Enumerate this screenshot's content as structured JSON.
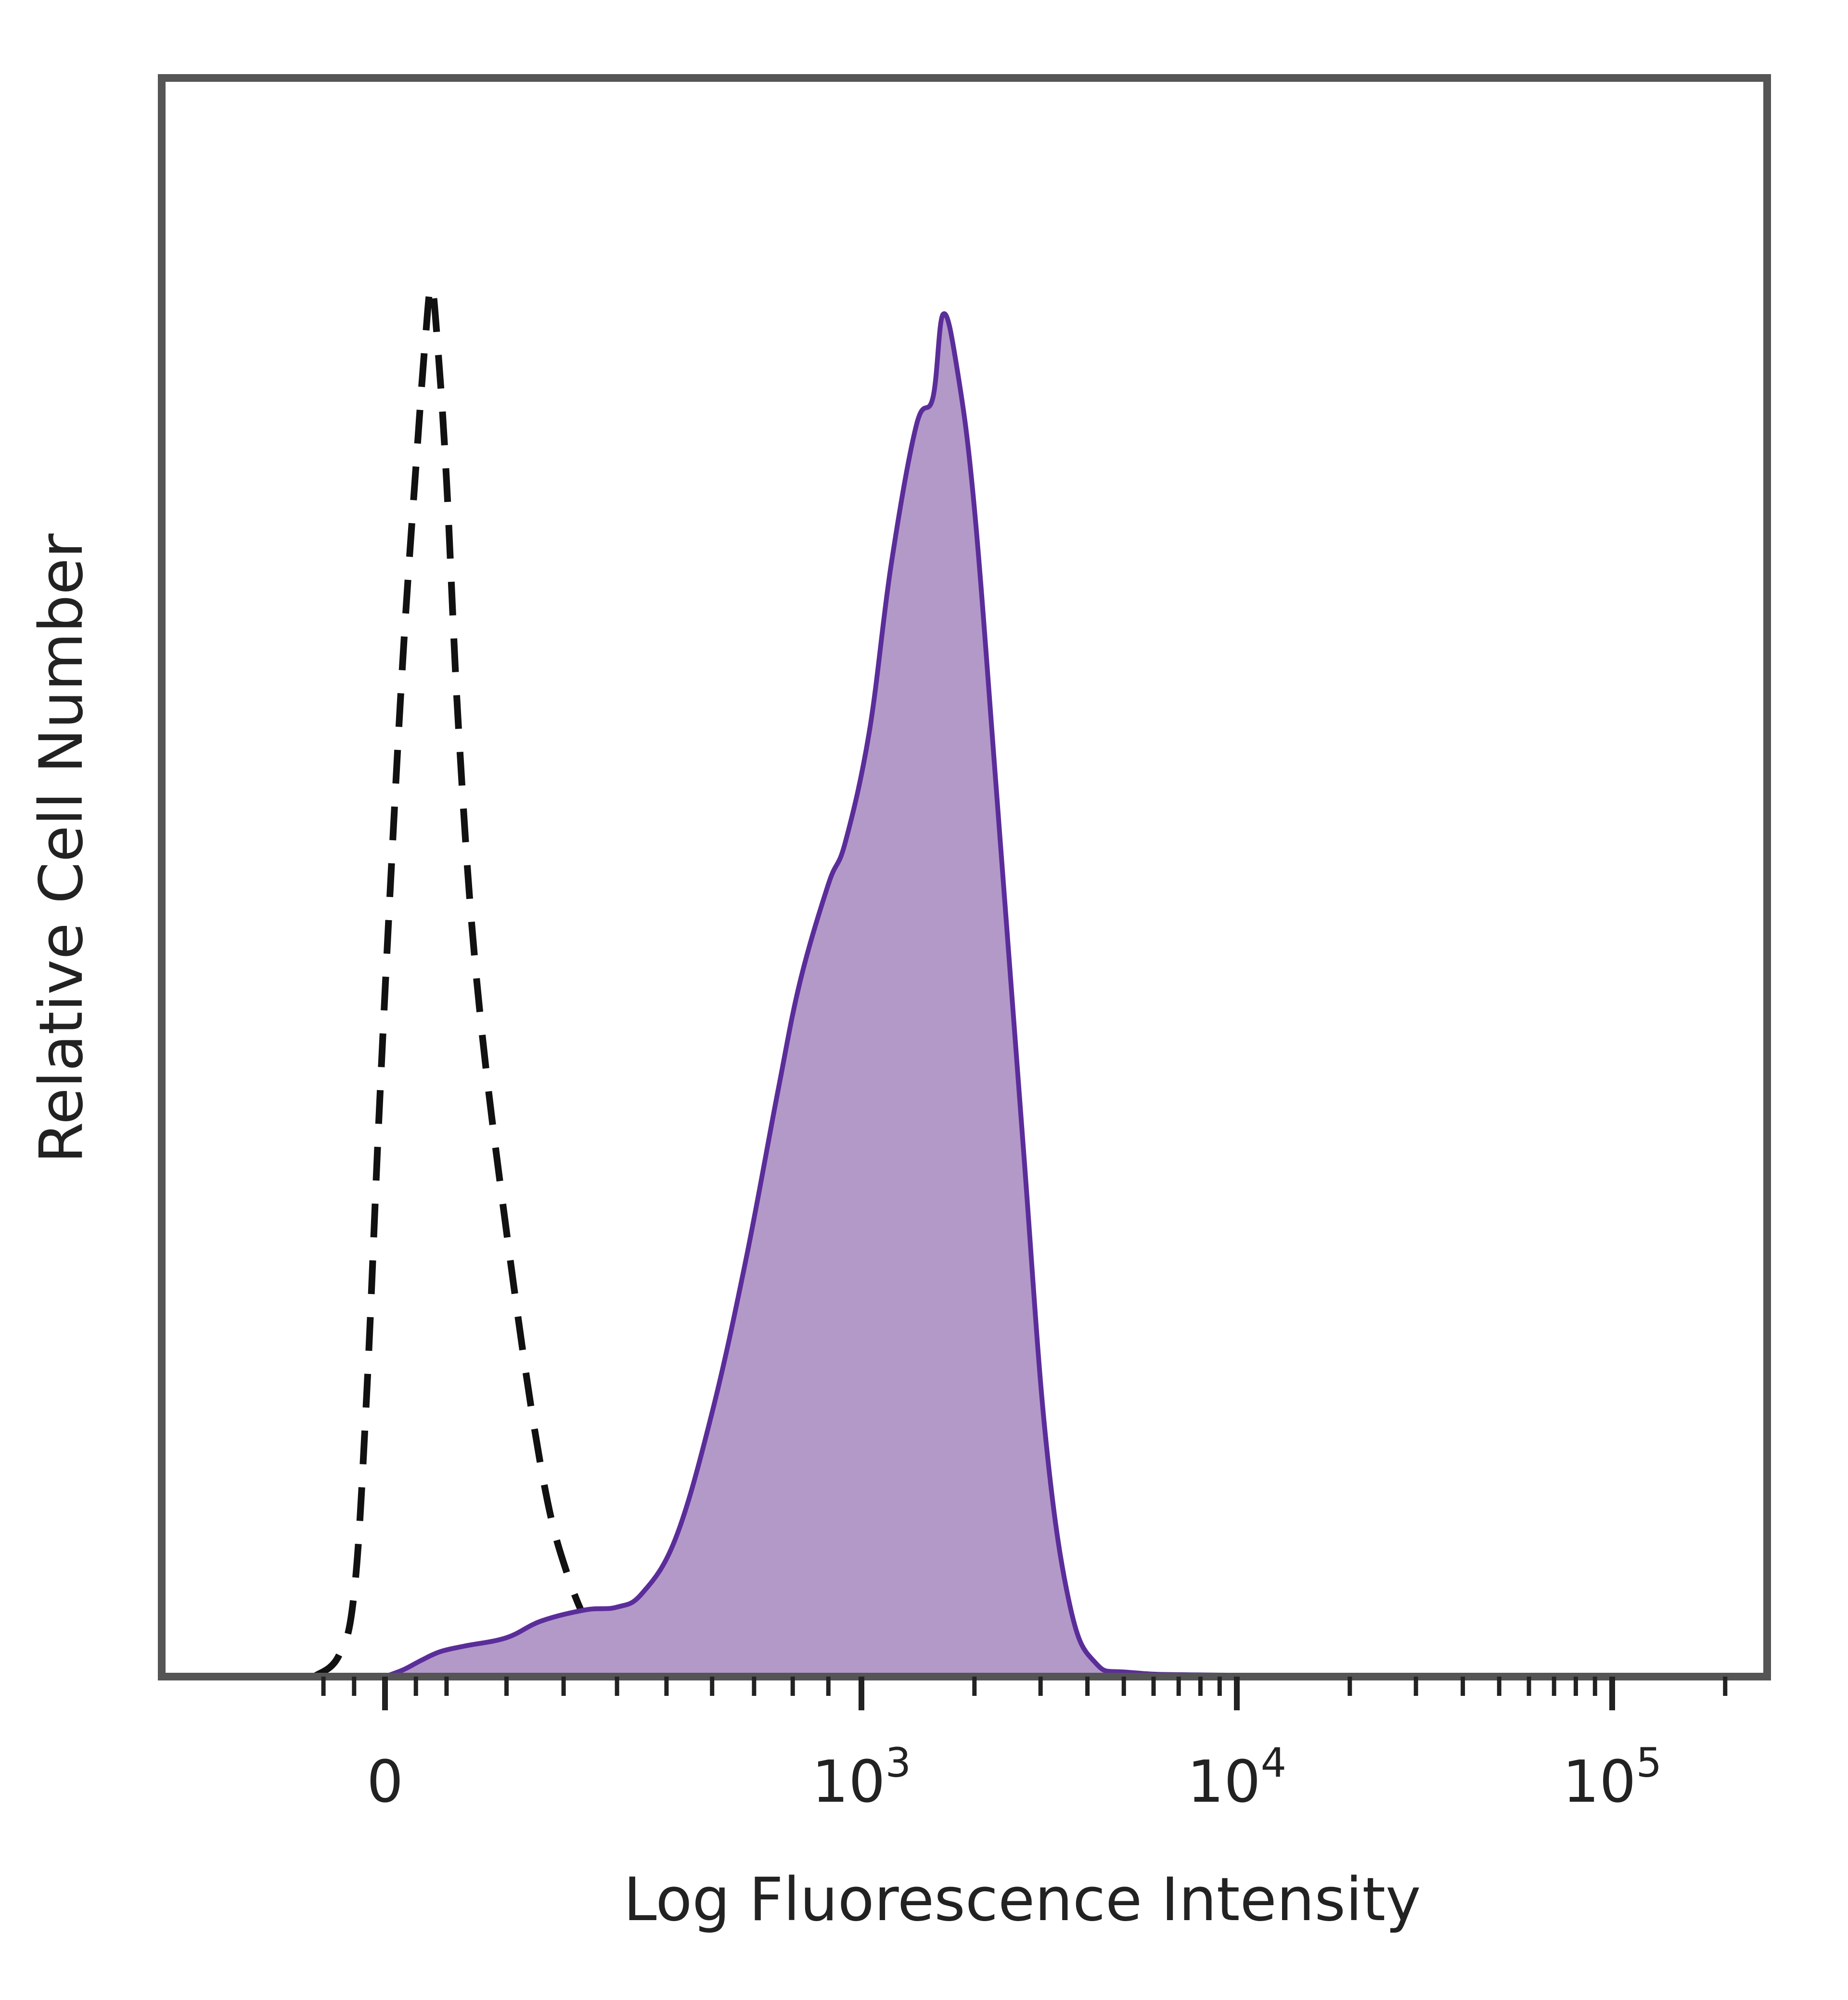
{
  "chart_data": {
    "type": "area",
    "title": "",
    "xlabel": "Log Fluorescence Intensity",
    "ylabel": "Relative Cell Number",
    "x_scale": "biexponential",
    "xlim": [
      -200,
      200000
    ],
    "ylim": [
      0,
      1.15
    ],
    "grid": false,
    "legend": "none",
    "x_ticks": [
      {
        "value": 0,
        "base": "0",
        "exp": ""
      },
      {
        "value": 1000,
        "base": "10",
        "exp": "3"
      },
      {
        "value": 10000,
        "base": "10",
        "exp": "4"
      },
      {
        "value": 100000,
        "base": "10",
        "exp": "5"
      }
    ],
    "minor_ticks": [
      -100,
      -50,
      50,
      100,
      200,
      300,
      400,
      500,
      600,
      700,
      800,
      900,
      2000,
      3000,
      4000,
      5000,
      6000,
      7000,
      8000,
      9000,
      20000,
      30000,
      40000,
      50000,
      60000,
      70000,
      80000,
      90000,
      200000
    ],
    "series": [
      {
        "style": "dashed",
        "color": "#111111",
        "fill": "none",
        "points": [
          [
            -115,
            0.0
          ],
          [
            -75,
            0.015
          ],
          [
            -50,
            0.06
          ],
          [
            -30,
            0.2
          ],
          [
            -10,
            0.4
          ],
          [
            10,
            0.58
          ],
          [
            30,
            0.74
          ],
          [
            50,
            0.87
          ],
          [
            65,
            0.96
          ],
          [
            75,
            1.0
          ],
          [
            85,
            0.96
          ],
          [
            100,
            0.86
          ],
          [
            120,
            0.68
          ],
          [
            150,
            0.5
          ],
          [
            200,
            0.32
          ],
          [
            260,
            0.15
          ],
          [
            310,
            0.07
          ],
          [
            370,
            0.02
          ],
          [
            420,
            0.0
          ]
        ]
      },
      {
        "style": "solid",
        "color": "#5b2d9a",
        "fill": "#b399c8",
        "points": [
          [
            0,
            0.0
          ],
          [
            30,
            0.005
          ],
          [
            60,
            0.012
          ],
          [
            90,
            0.018
          ],
          [
            130,
            0.022
          ],
          [
            200,
            0.028
          ],
          [
            260,
            0.04
          ],
          [
            340,
            0.048
          ],
          [
            400,
            0.05
          ],
          [
            450,
            0.06
          ],
          [
            520,
            0.1
          ],
          [
            600,
            0.19
          ],
          [
            680,
            0.3
          ],
          [
            760,
            0.42
          ],
          [
            820,
            0.5
          ],
          [
            900,
            0.57
          ],
          [
            950,
            0.6
          ],
          [
            1050,
            0.68
          ],
          [
            1200,
            0.8
          ],
          [
            1400,
            0.9
          ],
          [
            1550,
            0.92
          ],
          [
            1650,
            0.98
          ],
          [
            1800,
            0.94
          ],
          [
            2000,
            0.84
          ],
          [
            2300,
            0.63
          ],
          [
            2700,
            0.38
          ],
          [
            3100,
            0.17
          ],
          [
            3600,
            0.05
          ],
          [
            4200,
            0.01
          ],
          [
            5200,
            0.003
          ],
          [
            10000,
            0.001
          ],
          [
            100000,
            0.0
          ],
          [
            180000,
            0.0
          ]
        ]
      }
    ]
  }
}
